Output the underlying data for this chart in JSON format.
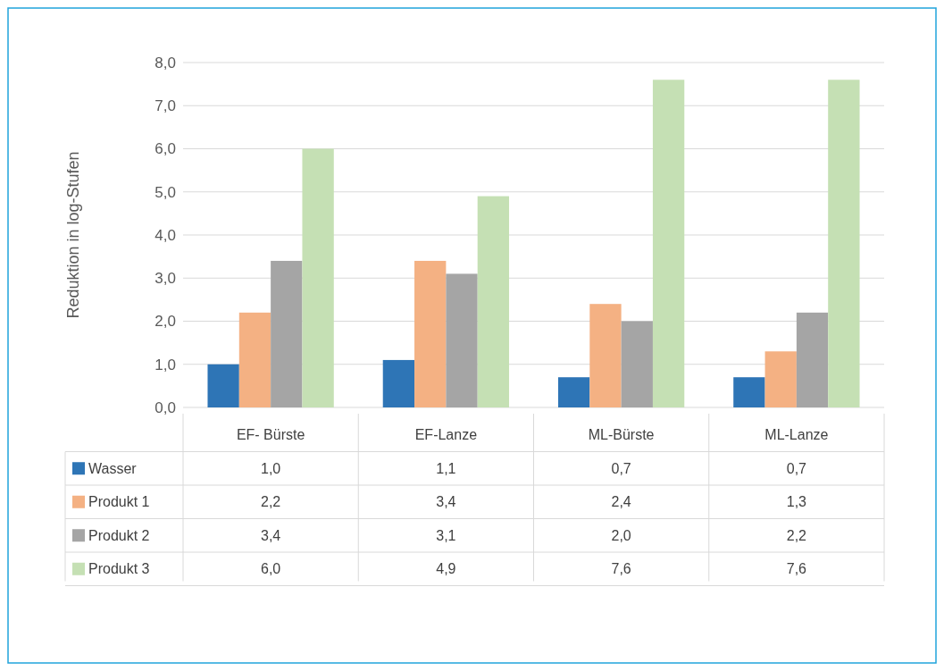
{
  "chart_data": {
    "type": "bar",
    "ylabel": "Reduktion in log-Stufen",
    "categories": [
      "EF- Bürste",
      "EF-Lanze",
      "ML-Bürste",
      "ML-Lanze"
    ],
    "series": [
      {
        "name": "Wasser",
        "color": "#2e75b6",
        "values": [
          1.0,
          1.1,
          0.7,
          0.7
        ],
        "value_labels": [
          "1,0",
          "1,1",
          "0,7",
          "0,7"
        ]
      },
      {
        "name": "Produkt 1",
        "color": "#f4b183",
        "values": [
          2.2,
          3.4,
          2.4,
          1.3
        ],
        "value_labels": [
          "2,2",
          "3,4",
          "2,4",
          "1,3"
        ]
      },
      {
        "name": "Produkt 2",
        "color": "#a5a5a5",
        "values": [
          3.4,
          3.1,
          2.0,
          2.2
        ],
        "value_labels": [
          "3,4",
          "3,1",
          "2,0",
          "2,2"
        ]
      },
      {
        "name": "Produkt 3",
        "color": "#c5e0b4",
        "values": [
          6.0,
          4.9,
          7.6,
          7.6
        ],
        "value_labels": [
          "6,0",
          "4,9",
          "7,6",
          "7,6"
        ]
      }
    ],
    "ylim": [
      0,
      8
    ],
    "yticks": [
      {
        "value": 0,
        "label": "0,0"
      },
      {
        "value": 1,
        "label": "1,0"
      },
      {
        "value": 2,
        "label": "2,0"
      },
      {
        "value": 3,
        "label": "3,0"
      },
      {
        "value": 4,
        "label": "4,0"
      },
      {
        "value": 5,
        "label": "5,0"
      },
      {
        "value": 6,
        "label": "6,0"
      },
      {
        "value": 7,
        "label": "7,0"
      },
      {
        "value": 8,
        "label": "8,0"
      }
    ],
    "grid": true,
    "legend": "bottom"
  }
}
